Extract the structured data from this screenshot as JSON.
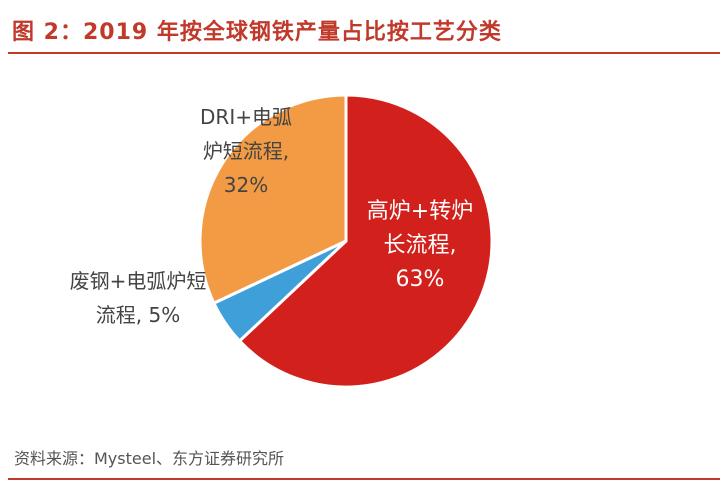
{
  "title": "图 2：2019 年按全球钢铁产量占比按工艺分类",
  "source": "资料来源：Mysteel、东方证券研究所",
  "chart_data": {
    "type": "pie",
    "title": "",
    "slices": [
      {
        "label_lines": [
          "高炉+转炉",
          "长流程,",
          "63%"
        ],
        "value": 63,
        "color": "#d2201c",
        "label_color": "#ffffff"
      },
      {
        "label_lines": [
          "废钢+电弧炉短",
          "流程, 5%"
        ],
        "value": 5,
        "color": "#3f9fd9",
        "label_color": "#444444"
      },
      {
        "label_lines": [
          "DRI+电弧",
          "炉短流程,",
          "32%"
        ],
        "value": 32,
        "color": "#f39a45",
        "label_color": "#444444"
      }
    ],
    "start_angle_deg": 0,
    "direction": "clockwise",
    "legend": "none"
  }
}
